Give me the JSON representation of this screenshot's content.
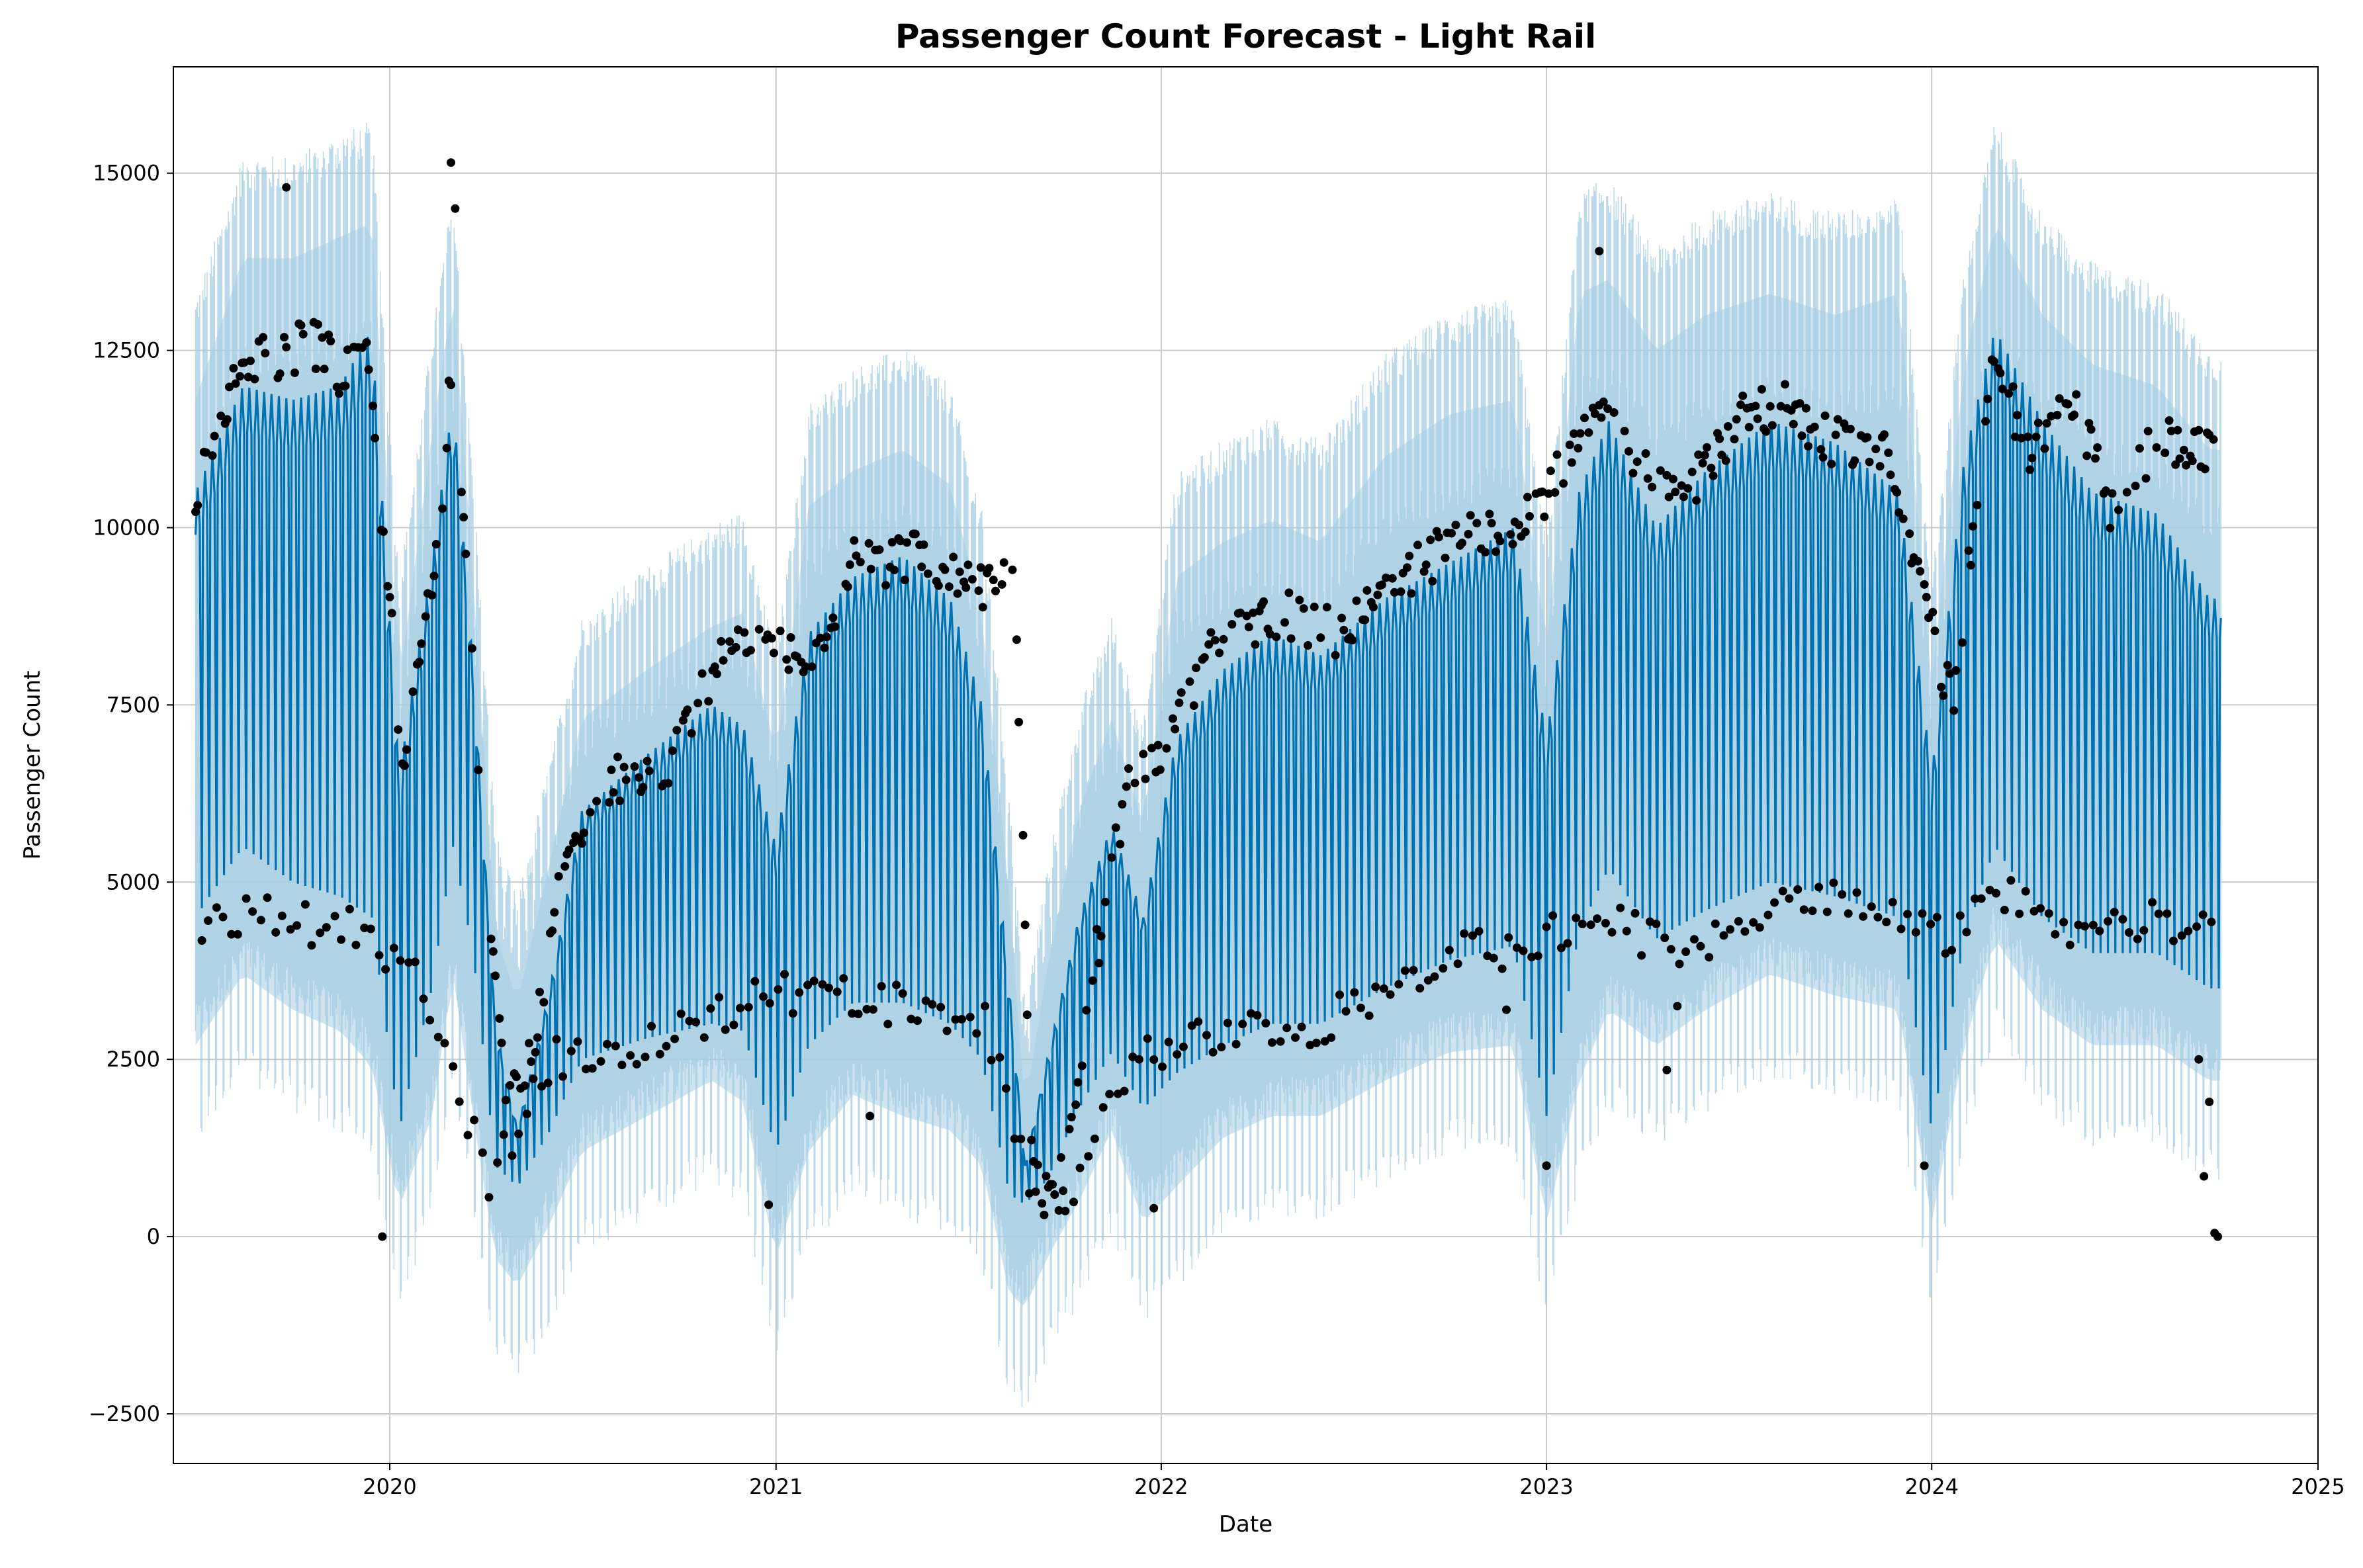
{
  "chart_data": {
    "type": "line",
    "title": "Passenger Count Forecast - Light Rail",
    "xlabel": "Date",
    "ylabel": "Passenger Count",
    "x_range": [
      "2019-06-10",
      "2025-01-01"
    ],
    "ylim": [
      -3200,
      16500
    ],
    "x_ticks": [
      {
        "date": "2020-01-01",
        "label": "2020"
      },
      {
        "date": "2021-01-01",
        "label": "2021"
      },
      {
        "date": "2022-01-01",
        "label": "2022"
      },
      {
        "date": "2023-01-01",
        "label": "2023"
      },
      {
        "date": "2024-01-01",
        "label": "2024"
      },
      {
        "date": "2025-01-01",
        "label": "2025"
      }
    ],
    "y_ticks": [
      {
        "value": -2500,
        "label": "−2500"
      },
      {
        "value": 0,
        "label": "0"
      },
      {
        "value": 2500,
        "label": "2500"
      },
      {
        "value": 5000,
        "label": "5000"
      },
      {
        "value": 7500,
        "label": "7500"
      },
      {
        "value": 10000,
        "label": "10000"
      },
      {
        "value": 12500,
        "label": "12500"
      },
      {
        "value": 15000,
        "label": "15000"
      }
    ],
    "grid": true,
    "colors": {
      "forecast": "#0072B2",
      "interval": "#a6cee3",
      "observed": "#000000",
      "grid": "#c8c8c8"
    },
    "series": [
      {
        "role": "forecast_weekday_envelope",
        "x": [
          "2019-07-01",
          "2019-08-15",
          "2019-10-01",
          "2019-11-15",
          "2019-12-15",
          "2020-01-10",
          "2020-02-10",
          "2020-03-01",
          "2020-03-20",
          "2020-04-10",
          "2020-05-01",
          "2020-06-01",
          "2020-07-01",
          "2020-09-01",
          "2020-11-01",
          "2020-12-01",
          "2021-01-01",
          "2021-02-01",
          "2021-03-15",
          "2021-05-01",
          "2021-06-15",
          "2021-07-15",
          "2021-08-10",
          "2021-08-25",
          "2021-09-15",
          "2021-10-15",
          "2021-11-15",
          "2021-12-15",
          "2022-01-15",
          "2022-03-01",
          "2022-04-15",
          "2022-06-01",
          "2022-08-01",
          "2022-10-01",
          "2022-12-01",
          "2023-01-01",
          "2023-02-01",
          "2023-03-01",
          "2023-04-15",
          "2023-06-01",
          "2023-08-01",
          "2023-10-01",
          "2023-12-01",
          "2024-01-01",
          "2024-02-01",
          "2024-03-01",
          "2024-04-15",
          "2024-06-01",
          "2024-08-01",
          "2024-09-20"
        ],
        "values": [
          10500,
          12000,
          11800,
          12000,
          12800,
          6500,
          9500,
          11800,
          8000,
          3000,
          1500,
          3500,
          6000,
          6800,
          7500,
          7200,
          5500,
          8500,
          9300,
          9600,
          9000,
          7500,
          3500,
          1000,
          2500,
          4500,
          5800,
          4500,
          7000,
          8000,
          8500,
          8200,
          9000,
          9500,
          10000,
          7000,
          10500,
          11500,
          10000,
          10800,
          11500,
          11200,
          10500,
          6500,
          11000,
          12800,
          11500,
          10500,
          10200,
          9000
        ]
      },
      {
        "role": "forecast_weekend_envelope",
        "x": [
          "2019-07-01",
          "2019-08-15",
          "2019-10-01",
          "2019-11-15",
          "2019-12-15",
          "2020-01-10",
          "2020-02-10",
          "2020-03-01",
          "2020-03-20",
          "2020-04-10",
          "2020-05-01",
          "2020-06-01",
          "2020-07-01",
          "2020-09-01",
          "2020-11-01",
          "2020-12-01",
          "2021-01-01",
          "2021-02-01",
          "2021-03-15",
          "2021-05-01",
          "2021-06-15",
          "2021-07-15",
          "2021-08-10",
          "2021-08-25",
          "2021-09-15",
          "2021-10-15",
          "2021-11-15",
          "2021-12-15",
          "2022-01-15",
          "2022-03-01",
          "2022-04-15",
          "2022-06-01",
          "2022-08-01",
          "2022-10-01",
          "2022-12-01",
          "2023-01-01",
          "2023-02-01",
          "2023-03-01",
          "2023-04-15",
          "2023-06-01",
          "2023-08-01",
          "2023-10-01",
          "2023-12-01",
          "2024-01-01",
          "2024-02-01",
          "2024-03-01",
          "2024-04-15",
          "2024-06-01",
          "2024-08-01",
          "2024-09-20"
        ],
        "values": [
          4500,
          5500,
          5000,
          4800,
          4500,
          1500,
          3500,
          5500,
          4000,
          1000,
          700,
          1500,
          2500,
          2800,
          3000,
          2900,
          1200,
          2700,
          3300,
          3300,
          3000,
          2500,
          600,
          450,
          800,
          1800,
          2600,
          1800,
          2300,
          2700,
          3000,
          3000,
          3500,
          3900,
          4100,
          1700,
          4300,
          5200,
          4200,
          4600,
          5000,
          4800,
          4500,
          1500,
          4200,
          5500,
          4500,
          4000,
          4000,
          3500
        ]
      },
      {
        "role": "interval_upper",
        "x": [
          "2019-07-01",
          "2019-08-15",
          "2019-10-01",
          "2019-11-15",
          "2019-12-15",
          "2020-01-10",
          "2020-02-10",
          "2020-03-01",
          "2020-03-20",
          "2020-04-10",
          "2020-05-01",
          "2020-06-01",
          "2020-07-01",
          "2020-09-01",
          "2020-11-01",
          "2020-12-01",
          "2021-01-01",
          "2021-02-01",
          "2021-03-15",
          "2021-05-01",
          "2021-06-15",
          "2021-07-15",
          "2021-08-10",
          "2021-08-25",
          "2021-09-15",
          "2021-10-15",
          "2021-11-15",
          "2021-12-15",
          "2022-01-15",
          "2022-03-01",
          "2022-04-15",
          "2022-06-01",
          "2022-08-01",
          "2022-10-01",
          "2022-12-01",
          "2023-01-01",
          "2023-02-01",
          "2023-03-01",
          "2023-04-15",
          "2023-06-01",
          "2023-08-01",
          "2023-10-01",
          "2023-12-01",
          "2024-01-01",
          "2024-02-01",
          "2024-03-01",
          "2024-04-15",
          "2024-06-01",
          "2024-08-01",
          "2024-09-20"
        ],
        "values": [
          13000,
          15000,
          15000,
          15300,
          15500,
          9000,
          12500,
          14500,
          10500,
          5500,
          4500,
          6500,
          8500,
          9200,
          9800,
          10000,
          8000,
          11500,
          12000,
          12300,
          11800,
          10000,
          6000,
          3000,
          5000,
          7200,
          8500,
          7000,
          10500,
          11000,
          11300,
          11000,
          12200,
          12800,
          13000,
          9500,
          14500,
          14700,
          13700,
          14200,
          14500,
          14200,
          14500,
          9000,
          13500,
          15500,
          14200,
          13500,
          13200,
          12300
        ]
      },
      {
        "role": "interval_lower",
        "x": [
          "2019-07-01",
          "2019-08-15",
          "2019-10-01",
          "2019-11-15",
          "2019-12-15",
          "2020-01-10",
          "2020-02-10",
          "2020-03-01",
          "2020-03-20",
          "2020-04-10",
          "2020-05-01",
          "2020-06-01",
          "2020-07-01",
          "2020-09-01",
          "2020-11-01",
          "2020-12-01",
          "2021-01-01",
          "2021-02-01",
          "2021-03-15",
          "2021-05-01",
          "2021-06-15",
          "2021-07-15",
          "2021-08-10",
          "2021-08-25",
          "2021-09-15",
          "2021-10-15",
          "2021-11-15",
          "2021-12-15",
          "2022-01-15",
          "2022-03-01",
          "2022-04-15",
          "2022-06-01",
          "2022-08-01",
          "2022-10-01",
          "2022-12-01",
          "2023-01-01",
          "2023-02-01",
          "2023-03-01",
          "2023-04-15",
          "2023-06-01",
          "2023-08-01",
          "2023-10-01",
          "2023-12-01",
          "2024-01-01",
          "2024-02-01",
          "2024-03-01",
          "2024-04-15",
          "2024-06-01",
          "2024-08-01",
          "2024-09-20"
        ],
        "values": [
          1500,
          2500,
          2000,
          1700,
          1200,
          -800,
          500,
          2500,
          500,
          -1500,
          -1900,
          -1000,
          0,
          500,
          1000,
          700,
          -1500,
          0,
          800,
          500,
          300,
          -200,
          -2000,
          -2200,
          -1500,
          -700,
          300,
          -1000,
          -500,
          200,
          500,
          500,
          1000,
          1400,
          1500,
          -1000,
          1000,
          2000,
          1500,
          2000,
          2500,
          2200,
          2000,
          -1000,
          1500,
          3000,
          2000,
          1500,
          1500,
          1000
        ]
      },
      {
        "role": "observed_weekday",
        "x": [
          "2019-07-01",
          "2019-08-15",
          "2019-09-20",
          "2019-10-15",
          "2019-11-15",
          "2019-12-10",
          "2020-01-15",
          "2020-02-20",
          "2020-03-01",
          "2020-03-25",
          "2020-04-20",
          "2020-05-15",
          "2020-06-15",
          "2020-08-01",
          "2020-09-15",
          "2020-11-01",
          "2020-12-15",
          "2021-02-01",
          "2021-03-15",
          "2021-04-20",
          "2021-05-20",
          "2021-06-20",
          "2021-07-15",
          "2021-08-15",
          "2021-09-01",
          "2021-10-01",
          "2021-11-01",
          "2021-12-01",
          "2022-01-10",
          "2022-02-15",
          "2022-03-15",
          "2022-05-01",
          "2022-06-15",
          "2022-08-01",
          "2022-10-01",
          "2022-12-01",
          "2023-02-20",
          "2023-04-01",
          "2023-05-15",
          "2023-07-01",
          "2023-08-15",
          "2023-10-01",
          "2023-11-20",
          "2024-01-20",
          "2024-03-01",
          "2024-04-01",
          "2024-05-15",
          "2024-06-20",
          "2024-08-01",
          "2024-09-15"
        ],
        "values": [
          10500,
          12500,
          12300,
          12700,
          12200,
          12500,
          6500,
          10500,
          12800,
          6500,
          1700,
          2500,
          5500,
          6500,
          6400,
          8000,
          8700,
          8000,
          9600,
          9500,
          9700,
          9300,
          9200,
          9400,
          750,
          800,
          4000,
          6500,
          7000,
          8300,
          8600,
          8800,
          8500,
          9000,
          9800,
          9900,
          11500,
          11000,
          10500,
          11500,
          11700,
          11200,
          11000,
          7500,
          12500,
          11000,
          11800,
          10200,
          11300,
          11000
        ]
      },
      {
        "role": "observed_weekend",
        "x": [
          "2019-07-15",
          "2019-09-01",
          "2019-10-20",
          "2019-12-01",
          "2020-02-01",
          "2020-04-05",
          "2020-06-01",
          "2020-08-15",
          "2020-10-15",
          "2020-12-01",
          "2021-02-15",
          "2021-04-15",
          "2021-06-01",
          "2021-07-20",
          "2021-09-01",
          "2021-10-15",
          "2021-12-01",
          "2022-02-01",
          "2022-04-01",
          "2022-06-01",
          "2022-08-01",
          "2022-10-15",
          "2022-12-01",
          "2023-03-01",
          "2023-05-01",
          "2023-07-01",
          "2023-09-01",
          "2023-11-01",
          "2024-01-15",
          "2024-03-15",
          "2024-05-15",
          "2024-07-15",
          "2024-09-01"
        ],
        "values": [
          4400,
          4500,
          4400,
          4400,
          3500,
          800,
          2500,
          2600,
          3000,
          3300,
          3500,
          3300,
          3200,
          3000,
          500,
          700,
          2500,
          2800,
          3000,
          3000,
          3500,
          4000,
          4100,
          4500,
          4000,
          4400,
          4700,
          4700,
          4200,
          4800,
          4300,
          4400,
          4500
        ]
      },
      {
        "role": "observed_outliers",
        "x": [
          "2019-09-25",
          "2019-12-25",
          "2020-02-28",
          "2020-03-03",
          "2020-12-25",
          "2021-03-31",
          "2021-12-25",
          "2022-11-24",
          "2023-01-01",
          "2023-02-20",
          "2023-04-25",
          "2023-05-05",
          "2023-12-25",
          "2024-09-10",
          "2024-09-15",
          "2024-09-20",
          "2024-09-25",
          "2024-09-28"
        ],
        "values": [
          14800,
          0,
          15150,
          14500,
          450,
          1700,
          400,
          3200,
          1000,
          13900,
          2350,
          3250,
          1000,
          2500,
          850,
          1900,
          50,
          0
        ]
      }
    ]
  }
}
